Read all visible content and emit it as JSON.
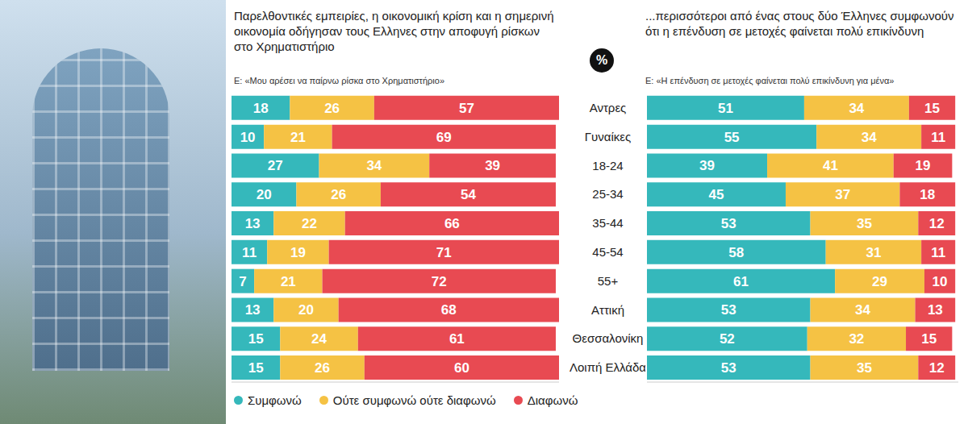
{
  "chart_data": [
    {
      "type": "bar",
      "orientation": "horizontal",
      "stacked": true,
      "data_labels": true,
      "tick_labels": false,
      "legend": "bottom",
      "title": "Παρελθοντικές εμπειρίες, η οικονομική κρίση και η σημερινή οικονομία οδήγησαν τους Ελληνες στην αποφυγή ρίσκων στο Χρηματιστήριο",
      "subtitle": "Ε: «Μου αρέσει να παίρνω ρίσκα στο Χρηματιστήριο»",
      "annotations": [
        "%"
      ],
      "categories": [
        "Αντρες",
        "Γυναίκες",
        "18-24",
        "25-34",
        "35-44",
        "45-54",
        "55+",
        "Αττική",
        "Θεσσαλονίκη",
        "Λοιπή Ελλάδα"
      ],
      "xlim": [
        0,
        101
      ],
      "series": [
        {
          "name": "Συμφωνώ",
          "color": "#35b8bb",
          "values": [
            18,
            10,
            27,
            20,
            13,
            11,
            7,
            13,
            15,
            15
          ]
        },
        {
          "name": "Ούτε συμφωνώ ούτε διαφωνώ",
          "color": "#f5c244",
          "values": [
            26,
            21,
            34,
            26,
            22,
            19,
            21,
            20,
            24,
            26
          ]
        },
        {
          "name": "Διαφωνώ",
          "color": "#e84a52",
          "values": [
            57,
            69,
            39,
            54,
            66,
            71,
            72,
            68,
            61,
            60
          ]
        }
      ]
    },
    {
      "type": "bar",
      "orientation": "horizontal",
      "stacked": true,
      "data_labels": true,
      "tick_labels": false,
      "title": "...περισσότεροι από ένας στους δύο Έλληνες συμφωνούν ότι η επένδυση σε μετοχές φαίνεται πολύ επικίνδυνη",
      "subtitle": "Ε: «Η επένδυση σε μετοχές φαίνεται πολύ επικίνδυνη για μένα»",
      "categories": [
        "Αντρες",
        "Γυναίκες",
        "18-24",
        "25-34",
        "35-44",
        "45-54",
        "55+",
        "Αττική",
        "Θεσσαλονίκη",
        "Λοιπή Ελλάδα"
      ],
      "xlim": [
        0,
        101
      ],
      "series": [
        {
          "name": "Συμφωνώ",
          "color": "#35b8bb",
          "values": [
            51,
            55,
            39,
            45,
            53,
            58,
            61,
            53,
            52,
            53
          ]
        },
        {
          "name": "Ούτε συμφωνώ ούτε διαφωνώ",
          "color": "#f5c244",
          "values": [
            34,
            34,
            41,
            37,
            35,
            31,
            29,
            34,
            32,
            35
          ]
        },
        {
          "name": "Διαφωνώ",
          "color": "#e84a52",
          "values": [
            15,
            11,
            19,
            18,
            12,
            11,
            10,
            13,
            15,
            12
          ]
        }
      ]
    }
  ]
}
